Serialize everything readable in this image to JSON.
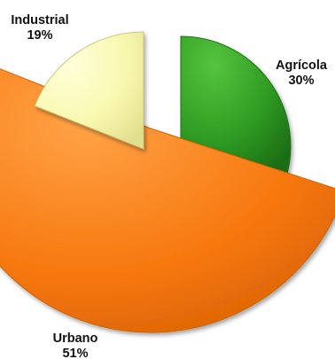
{
  "chart_data": {
    "type": "pie",
    "exploded": true,
    "title": "",
    "categories": [
      "Agrícola",
      "Urbano",
      "Industrial"
    ],
    "values": [
      30,
      51,
      19
    ],
    "labels": [
      {
        "name": "Agrícola",
        "percent": "30%"
      },
      {
        "name": "Urbano",
        "percent": "51%"
      },
      {
        "name": "Industrial",
        "percent": "19%"
      }
    ],
    "colors": [
      "#2e9a22",
      "#f7780f",
      "#f9f8b0"
    ],
    "legend": "none"
  }
}
